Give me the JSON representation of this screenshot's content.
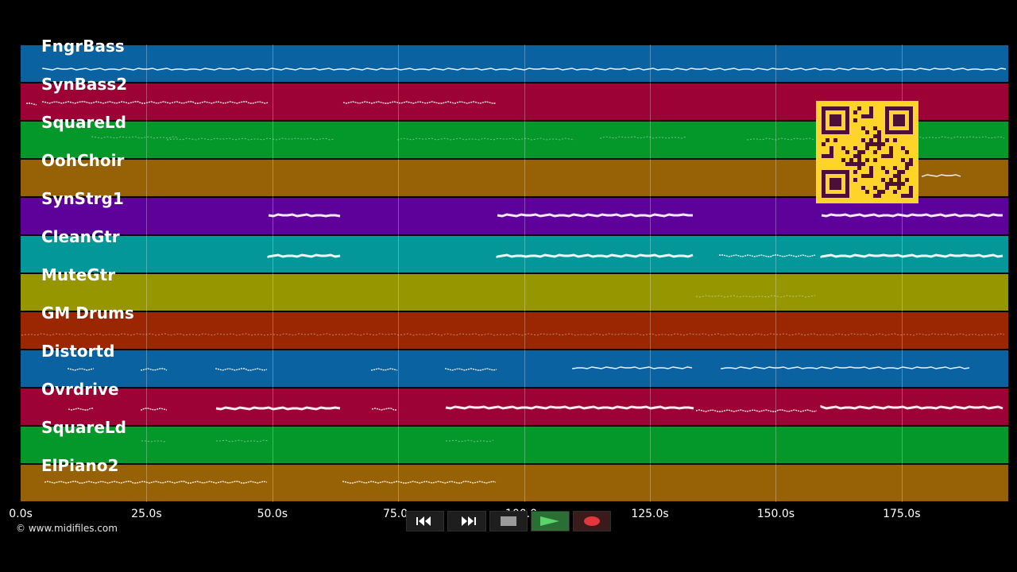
{
  "tracks": [
    {
      "name": "FngrBass",
      "color": "#0a62a0"
    },
    {
      "name": "SynBass2",
      "color": "#9c0235"
    },
    {
      "name": "SquareLd",
      "color": "#04972a"
    },
    {
      "name": "OohChoir",
      "color": "#976105"
    },
    {
      "name": "SynStrg1",
      "color": "#5e009a"
    },
    {
      "name": "CleanGtr",
      "color": "#03979a"
    },
    {
      "name": "MuteGtr",
      "color": "#969600"
    },
    {
      "name": "GM Drums",
      "color": "#9a2602"
    },
    {
      "name": "Distortd",
      "color": "#0a62a0"
    },
    {
      "name": "Ovrdrive",
      "color": "#9c0235"
    },
    {
      "name": "SquareLd",
      "color": "#04972a"
    },
    {
      "name": "ElPiano2",
      "color": "#976105"
    }
  ],
  "timeline": {
    "ticks": [
      "0.0s",
      "25.0s",
      "50.0s",
      "75.0s",
      "100.0s",
      "125.0s",
      "150.0s",
      "175.0s"
    ]
  },
  "copyright": "© www.midifiles.com",
  "transport": {
    "buttons": [
      {
        "name": "rewind",
        "icon": "rewind-icon"
      },
      {
        "name": "fast-forward",
        "icon": "fast-forward-icon"
      },
      {
        "name": "stop",
        "icon": "stop-icon"
      },
      {
        "name": "play",
        "icon": "play-icon",
        "color": "#3fb24d"
      },
      {
        "name": "record",
        "icon": "record-icon",
        "color": "#e3363d"
      }
    ]
  },
  "qr": {
    "icon": "qr-code-icon",
    "color": "#ffd42a",
    "fg": "#4a1038"
  }
}
